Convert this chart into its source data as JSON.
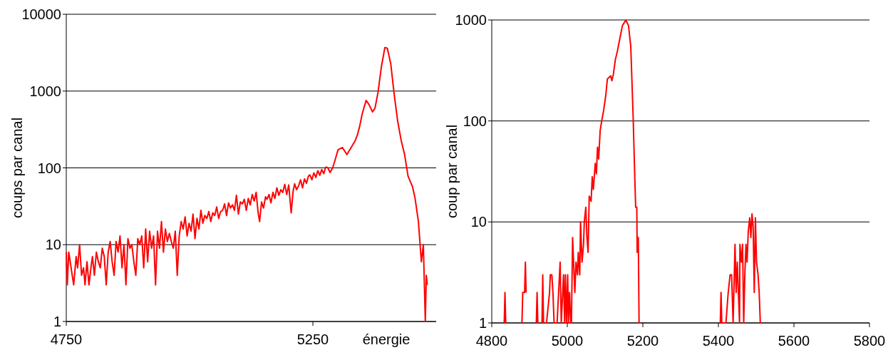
{
  "chart_data": [
    {
      "type": "line",
      "xlabel": "énergie",
      "ylabel": "coups par canal",
      "log": "y",
      "grid": "y",
      "xlim": [
        4750,
        5500
      ],
      "xticks": [
        4750,
        5250
      ],
      "ylim": [
        1,
        10000
      ],
      "yticks": [
        1,
        10,
        100,
        1000,
        10000
      ],
      "series": [
        {
          "color": "#ff0000",
          "x": [
            4750,
            4752,
            4755,
            4758,
            4762,
            4765,
            4770,
            4773,
            4777,
            4781,
            4785,
            4788,
            4792,
            4796,
            4800,
            4803,
            4807,
            4811,
            4815,
            4819,
            4823,
            4827,
            4831,
            4835,
            4839,
            4843,
            4847,
            4851,
            4855,
            4859,
            4863,
            4867,
            4871,
            4875,
            4879,
            4883,
            4887,
            4891,
            4895,
            4899,
            4903,
            4907,
            4911,
            4915,
            4919,
            4923,
            4927,
            4931,
            4935,
            4939,
            4943,
            4947,
            4951,
            4955,
            4959,
            4963,
            4967,
            4971,
            4975,
            4979,
            4983,
            4987,
            4991,
            4995,
            4999,
            5003,
            5007,
            5011,
            5015,
            5019,
            5023,
            5027,
            5031,
            5035,
            5039,
            5043,
            5047,
            5051,
            5055,
            5059,
            5063,
            5067,
            5071,
            5075,
            5079,
            5083,
            5087,
            5091,
            5095,
            5099,
            5103,
            5107,
            5111,
            5115,
            5119,
            5123,
            5127,
            5131,
            5135,
            5139,
            5142,
            5146,
            5150,
            5154,
            5157,
            5161,
            5165,
            5169,
            5173,
            5177,
            5181,
            5185,
            5189,
            5193,
            5197,
            5201,
            5206,
            5210,
            5213,
            5217,
            5221,
            5225,
            5229,
            5233,
            5237,
            5241,
            5244,
            5248,
            5252,
            5256,
            5260,
            5264,
            5268,
            5272,
            5276,
            5280,
            5285,
            5290,
            5294,
            5301,
            5310,
            5319,
            5331,
            5336,
            5340,
            5345,
            5350,
            5358,
            5364,
            5371,
            5376,
            5382,
            5389,
            5396,
            5401,
            5408,
            5415,
            5422,
            5429,
            5436,
            5443,
            5452,
            5457,
            5464,
            5470,
            5474,
            5478,
            5480,
            5482
          ],
          "values": [
            8,
            3,
            8,
            6,
            4,
            3,
            7,
            5,
            10,
            4,
            5,
            3,
            6,
            3,
            5,
            7,
            4,
            8,
            6,
            5,
            9,
            7,
            3,
            8,
            11,
            6,
            4,
            11,
            8,
            13,
            5,
            10,
            3,
            12,
            9,
            10,
            6,
            4,
            12,
            10,
            13,
            5,
            16,
            6,
            15,
            9,
            13,
            3,
            15,
            9,
            20,
            8,
            16,
            11,
            14,
            11,
            9,
            15,
            4,
            13,
            20,
            16,
            23,
            13,
            19,
            15,
            25,
            12,
            22,
            16,
            28,
            19,
            24,
            22,
            27,
            20,
            26,
            24,
            31,
            22,
            27,
            28,
            34,
            24,
            35,
            30,
            33,
            28,
            44,
            25,
            36,
            34,
            39,
            28,
            40,
            33,
            45,
            37,
            48,
            26,
            20,
            36,
            30,
            42,
            39,
            45,
            35,
            48,
            40,
            55,
            44,
            52,
            48,
            61,
            45,
            60,
            26,
            50,
            62,
            52,
            58,
            70,
            55,
            72,
            63,
            78,
            81,
            70,
            86,
            75,
            92,
            80,
            95,
            84,
            102,
            101,
            87,
            100,
            120,
            172,
            184,
            149,
            200,
            228,
            265,
            350,
            505,
            756,
            665,
            535,
            600,
            955,
            2080,
            3690,
            3600,
            2250,
            890,
            405,
            228,
            149,
            78,
            57,
            41,
            20,
            6,
            10,
            1,
            4,
            3
          ]
        }
      ]
    },
    {
      "type": "line",
      "ylabel": "coup par canal",
      "log": "y",
      "grid": "y",
      "xlim": [
        4800,
        5800
      ],
      "xticks": [
        4800,
        5000,
        5200,
        5400,
        5600,
        5800
      ],
      "ylim": [
        1,
        1000
      ],
      "yticks": [
        1,
        10,
        100,
        1000
      ],
      "series": [
        {
          "color": "#ff0000",
          "x": [
            4833,
            4835,
            4837,
            4850,
            4880,
            4882,
            4887,
            4889,
            4891,
            4895,
            4918,
            4920,
            4922,
            4927,
            4933,
            4935,
            4937,
            4940,
            4943,
            4945,
            4953,
            4955,
            4959,
            4962,
            4965,
            4970,
            4973,
            4981,
            4984,
            4990,
            4993,
            4995,
            4998,
            5001,
            5003,
            5006,
            5009,
            5011,
            5014,
            5020,
            5023,
            5027,
            5029,
            5033,
            5035,
            5039,
            5043,
            5045,
            5049,
            5052,
            5055,
            5058,
            5063,
            5066,
            5069,
            5074,
            5077,
            5080,
            5083,
            5087,
            5091,
            5096,
            5102,
            5106,
            5115,
            5118,
            5122,
            5127,
            5133,
            5140,
            5146,
            5155,
            5162,
            5168,
            5174,
            5179,
            5181,
            5184,
            5185,
            5188,
            5190,
            5194,
            5300,
            5405,
            5407,
            5409,
            5420,
            5426,
            5431,
            5435,
            5439,
            5444,
            5447,
            5450,
            5453,
            5456,
            5457,
            5461,
            5464,
            5467,
            5470,
            5473,
            5476,
            5479,
            5483,
            5486,
            5489,
            5492,
            5495,
            5498,
            5501,
            5505,
            5508,
            5511,
            5513
          ],
          "values": [
            1,
            2,
            1,
            null,
            1,
            2,
            2,
            4,
            2,
            null,
            1,
            2,
            1,
            null,
            1,
            3,
            1,
            null,
            1,
            1,
            2,
            3,
            3,
            2,
            1,
            1,
            1,
            4,
            1,
            3,
            1,
            3,
            1,
            3,
            1,
            2,
            1,
            1,
            7,
            2,
            4,
            3,
            5,
            3,
            10,
            4,
            6,
            10,
            14,
            7,
            5,
            18,
            16,
            28,
            21,
            38,
            30,
            55,
            42,
            80,
            100,
            126,
            180,
            260,
            280,
            250,
            290,
            400,
            500,
            680,
            880,
            1000,
            880,
            550,
            120,
            25,
            14,
            14,
            5,
            7,
            1,
            1,
            null,
            1,
            2,
            1,
            1,
            2,
            3,
            3,
            1,
            6,
            2,
            4,
            2,
            1,
            6,
            4,
            6,
            1,
            3,
            6,
            4,
            8,
            11,
            7,
            12,
            9,
            2,
            11,
            4,
            3,
            2,
            1,
            1
          ]
        }
      ]
    }
  ]
}
